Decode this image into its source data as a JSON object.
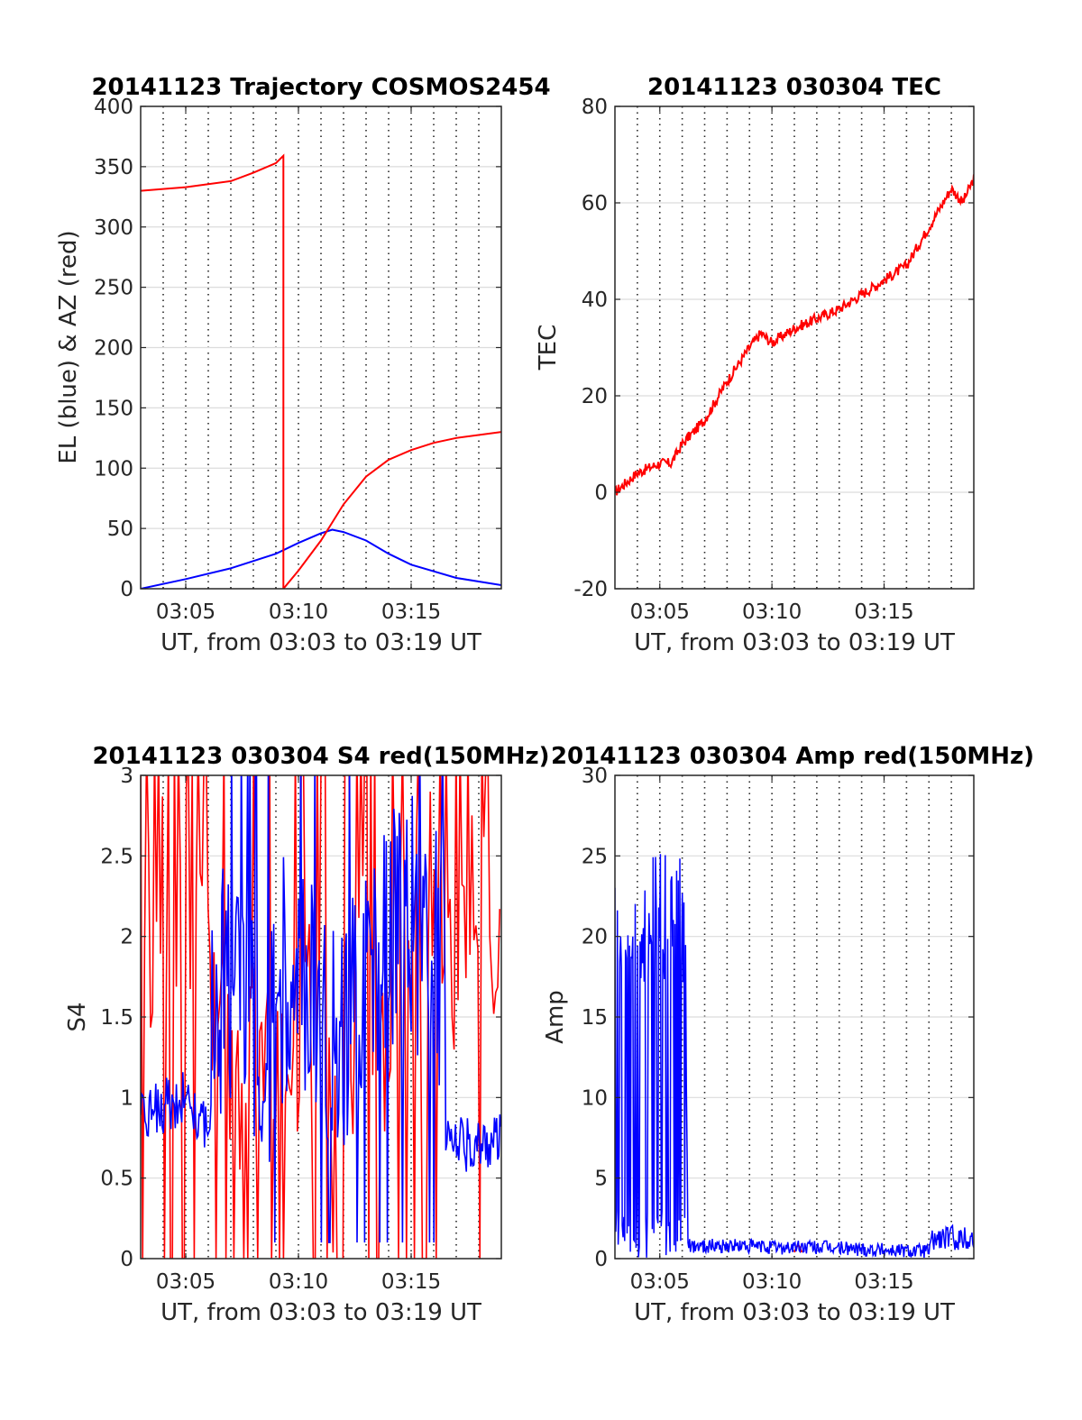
{
  "chart_data": [
    {
      "type": "line",
      "title": "20141123 Trajectory COSMOS2454",
      "xlabel": "UT, from 03:03 to 03:19 UT",
      "ylabel": "EL (blue) & AZ (red)",
      "xlim": [
        "03:03",
        "03:19"
      ],
      "ylim": [
        0,
        400
      ],
      "xticks": [
        "03:05",
        "03:10",
        "03:15"
      ],
      "yticks": [
        "0",
        "50",
        "100",
        "150",
        "200",
        "250",
        "300",
        "350",
        "400"
      ],
      "grid": "vertical dotted every minute, horizontal at y ticks",
      "series": [
        {
          "color": "#0000ff",
          "x": [
            "03:03",
            "03:05",
            "03:07",
            "03:09",
            "03:10",
            "03:11",
            "03:11:30",
            "03:12",
            "03:13",
            "03:14",
            "03:15",
            "03:17",
            "03:19"
          ],
          "y": [
            0,
            8,
            17,
            29,
            38,
            46,
            49,
            47,
            40,
            29,
            20,
            9,
            3
          ]
        },
        {
          "color": "#ff0000",
          "x": [
            "03:03",
            "03:05",
            "03:07",
            "03:08",
            "03:09",
            "03:09:20",
            "03:09:20",
            "03:10",
            "03:11",
            "03:12",
            "03:13",
            "03:14",
            "03:15",
            "03:16",
            "03:17",
            "03:19"
          ],
          "y": [
            330,
            333,
            338,
            345,
            353,
            359,
            0,
            15,
            40,
            70,
            93,
            107,
            115,
            121,
            125,
            130
          ]
        }
      ]
    },
    {
      "type": "line",
      "title": "20141123 030304 TEC",
      "xlabel": "UT, from 03:03 to 03:19 UT",
      "ylabel": "TEC",
      "xlim": [
        "03:03",
        "03:19"
      ],
      "ylim": [
        -20,
        80
      ],
      "xticks": [
        "03:05",
        "03:10",
        "03:15"
      ],
      "yticks": [
        "-20",
        "0",
        "20",
        "40",
        "60",
        "80"
      ],
      "grid": "vertical dotted every minute, horizontal at y ticks",
      "series": [
        {
          "color": "#ff0000",
          "x": [
            "03:03",
            "03:04",
            "03:05",
            "03:05:30",
            "03:06",
            "03:07",
            "03:08",
            "03:09",
            "03:09:30",
            "03:10",
            "03:11",
            "03:12",
            "03:13",
            "03:14",
            "03:15",
            "03:16",
            "03:17",
            "03:18",
            "03:18:30",
            "03:19"
          ],
          "y": [
            0,
            4,
            6,
            6,
            10,
            15,
            23,
            30,
            33,
            31,
            34,
            36,
            38,
            41,
            44,
            47,
            55,
            63,
            60,
            65
          ]
        }
      ]
    },
    {
      "type": "line",
      "title": "20141123 030304 S4 red(150MHz)",
      "xlabel": "UT, from 03:03 to 03:19 UT",
      "ylabel": "S4",
      "xlim": [
        "03:03",
        "03:19"
      ],
      "ylim": [
        0,
        3
      ],
      "xticks": [
        "03:05",
        "03:10",
        "03:15"
      ],
      "yticks": [
        "0",
        "0.5",
        "1",
        "1.5",
        "2",
        "2.5",
        "3"
      ],
      "grid": "vertical dotted every minute, horizontal at y ticks",
      "series": [
        {
          "color": "#ff0000",
          "x": [
            "03:03",
            "03:06:10",
            "03:06:10",
            "03:08",
            "03:09:30",
            "03:11",
            "03:12",
            "03:13",
            "03:14",
            "03:15",
            "03:16",
            "03:17",
            "03:18",
            "03:19"
          ],
          "y": [
            2.0,
            2.6,
            1.4,
            1.1,
            1.7,
            1.2,
            0.5,
            1.9,
            1.5,
            2.4,
            2.4,
            1.5,
            2.6,
            1.8
          ]
        },
        {
          "color": "#0000ff",
          "x": [
            "03:03",
            "03:05",
            "03:06:10",
            "03:06:10",
            "03:07",
            "03:08",
            "03:08:20",
            "03:09",
            "03:10",
            "03:11",
            "03:12",
            "03:13",
            "03:14",
            "03:15",
            "03:16:30",
            "03:16:30",
            "03:17",
            "03:18",
            "03:19"
          ],
          "y": [
            0.9,
            1.0,
            0.8,
            1.6,
            1.7,
            1.5,
            0.8,
            1.7,
            1.9,
            1.6,
            1.3,
            1.8,
            2.0,
            2.1,
            1.8,
            0.7,
            0.7,
            0.72,
            0.75
          ]
        }
      ]
    },
    {
      "type": "line",
      "title": "20141123 030304 Amp red(150MHz)",
      "xlabel": "UT, from 03:03 to 03:19 UT",
      "ylabel": "Amp",
      "xlim": [
        "03:03",
        "03:19"
      ],
      "ylim": [
        0,
        30
      ],
      "xticks": [
        "03:05",
        "03:10",
        "03:15"
      ],
      "yticks": [
        "0",
        "5",
        "10",
        "15",
        "20",
        "25",
        "30"
      ],
      "grid": "vertical dotted every minute, horizontal at y ticks",
      "series": [
        {
          "color": "#ff0000",
          "x": [
            "03:11:00",
            "03:11:10",
            "03:11:20"
          ],
          "y": [
            0.4,
            0.9,
            0.4
          ]
        },
        {
          "color": "#0000ff",
          "x": [
            "03:03",
            "03:04",
            "03:05",
            "03:06",
            "03:06:10",
            "03:06:15",
            "03:08",
            "03:10",
            "03:12",
            "03:14",
            "03:16",
            "03:17",
            "03:17:10",
            "03:18",
            "03:19"
          ],
          "y": [
            14,
            15,
            16,
            15,
            14,
            0.8,
            0.8,
            0.7,
            0.7,
            0.6,
            0.5,
            0.5,
            1.2,
            1.3,
            1.2
          ]
        }
      ]
    }
  ]
}
